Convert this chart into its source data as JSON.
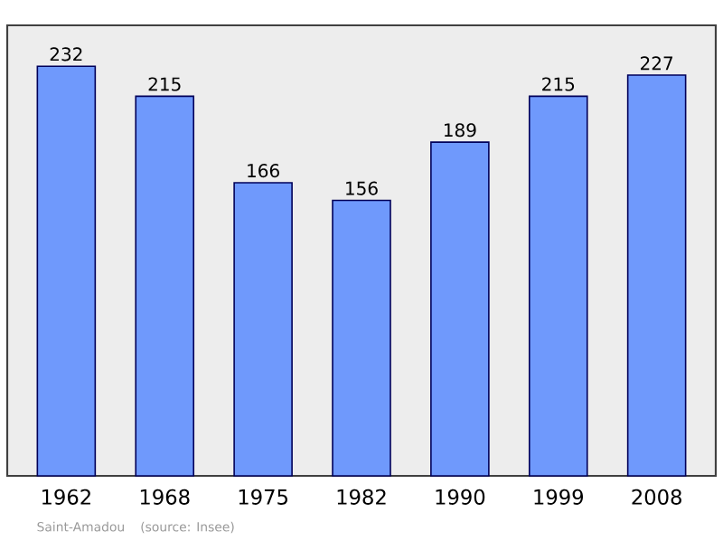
{
  "chart_data": {
    "type": "bar",
    "categories": [
      "1962",
      "1968",
      "1975",
      "1982",
      "1990",
      "1999",
      "2008"
    ],
    "values": [
      232,
      215,
      166,
      156,
      189,
      215,
      227
    ],
    "color": "#6f99fc",
    "data_labels": true,
    "annotations": [
      "Saint-Amadou",
      "(source: Insee)"
    ]
  }
}
